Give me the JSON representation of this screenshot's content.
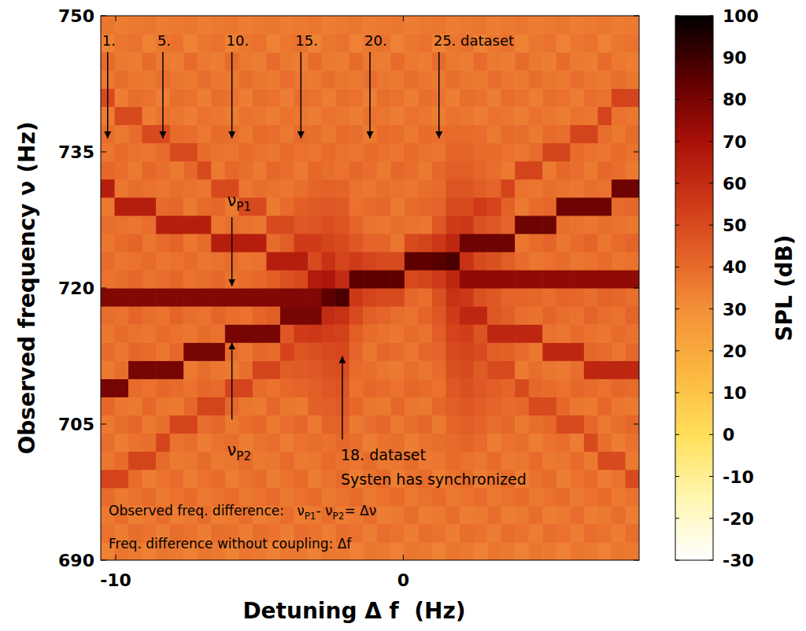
{
  "chart_data": {
    "type": "heatmap",
    "xlabel": "Detuning Δ f  (Hz)",
    "ylabel": "Observed frequency ν (Hz)",
    "xlim": [
      -10.52,
      8.2
    ],
    "ylim": [
      690,
      750
    ],
    "xticks": [
      -10,
      0
    ],
    "yticks": [
      690,
      705,
      720,
      735,
      750
    ],
    "grid": false,
    "x": [
      -10.28,
      -9.8,
      -9.32,
      -8.84,
      -8.36,
      -7.88,
      -7.4,
      -6.92,
      -6.44,
      -5.96,
      -5.48,
      -5.0,
      -4.52,
      -4.04,
      -3.56,
      -3.08,
      -2.6,
      -2.12,
      -1.64,
      -1.16,
      -0.68,
      -0.2,
      0.28,
      0.76,
      1.24,
      1.72,
      2.2,
      2.68,
      3.16,
      3.64,
      4.12,
      4.6,
      5.08,
      5.56,
      6.04,
      6.52,
      7.0,
      7.48,
      7.96
    ],
    "y": [
      691,
      693,
      695,
      697,
      699,
      701,
      703,
      705,
      707,
      709,
      711,
      713,
      715,
      717,
      719,
      721,
      723,
      725,
      727,
      729,
      731,
      733,
      735,
      737,
      739,
      741,
      743,
      745,
      747,
      749
    ],
    "cells": [
      [
        34,
        38,
        36,
        40,
        52,
        37,
        39,
        36,
        41,
        80,
        36,
        40,
        37,
        39,
        78,
        38,
        40,
        37,
        39,
        36,
        65,
        41,
        37,
        39,
        35,
        50,
        36,
        40,
        34,
        37
      ],
      [
        37,
        35,
        39,
        36,
        52,
        40,
        35,
        39,
        37,
        80,
        39,
        37,
        40,
        38,
        78,
        39,
        37,
        40,
        38,
        65,
        37,
        39,
        40,
        36,
        50,
        35,
        39,
        36,
        37,
        35
      ],
      [
        36,
        39,
        35,
        38,
        40,
        52,
        38,
        41,
        36,
        40,
        80,
        41,
        38,
        42,
        78,
        41,
        38,
        42,
        37,
        65,
        39,
        36,
        38,
        40,
        50,
        39,
        37,
        35,
        38,
        36
      ],
      [
        34,
        38,
        36,
        40,
        35,
        52,
        39,
        36,
        41,
        38,
        80,
        40,
        37,
        39,
        78,
        38,
        40,
        37,
        39,
        65,
        38,
        41,
        37,
        50,
        35,
        38,
        36,
        40,
        34,
        37
      ],
      [
        37,
        35,
        39,
        36,
        38,
        40,
        52,
        39,
        37,
        41,
        80,
        37,
        40,
        38,
        78,
        39,
        37,
        40,
        65,
        40,
        37,
        39,
        40,
        50,
        38,
        35,
        39,
        36,
        37,
        35
      ],
      [
        36,
        39,
        35,
        38,
        40,
        36,
        38,
        52,
        36,
        40,
        80,
        41,
        38,
        42,
        78,
        41,
        38,
        42,
        65,
        41,
        39,
        36,
        50,
        40,
        37,
        39,
        37,
        35,
        38,
        36
      ],
      [
        34,
        38,
        36,
        40,
        35,
        37,
        39,
        52,
        41,
        38,
        36,
        80,
        37,
        39,
        78,
        38,
        40,
        37,
        65,
        36,
        38,
        41,
        50,
        39,
        35,
        38,
        36,
        40,
        34,
        37
      ],
      [
        37,
        35,
        39,
        36,
        38,
        40,
        35,
        39,
        52,
        41,
        39,
        80,
        40,
        38,
        78,
        39,
        37,
        40,
        65,
        40,
        37,
        50,
        40,
        36,
        38,
        35,
        39,
        36,
        37,
        35
      ],
      [
        36,
        39,
        35,
        38,
        40,
        36,
        38,
        41,
        52,
        40,
        37,
        80,
        38,
        42,
        78,
        41,
        38,
        65,
        37,
        41,
        50,
        36,
        38,
        40,
        37,
        39,
        37,
        35,
        38,
        36
      ],
      [
        34,
        38,
        36,
        40,
        35,
        37,
        39,
        36,
        41,
        52,
        36,
        40,
        80,
        39,
        78,
        38,
        40,
        65,
        39,
        36,
        50,
        41,
        37,
        39,
        35,
        38,
        36,
        40,
        34,
        37
      ],
      [
        37,
        35,
        39,
        36,
        38,
        40,
        35,
        39,
        37,
        52,
        39,
        37,
        80,
        38,
        78,
        39,
        37,
        65,
        38,
        50,
        37,
        39,
        40,
        36,
        38,
        35,
        39,
        36,
        37,
        35
      ],
      [
        36,
        39,
        35,
        38,
        40,
        36,
        38,
        41,
        36,
        40,
        52,
        41,
        80,
        42,
        78,
        41,
        38,
        65,
        37,
        50,
        39,
        36,
        38,
        40,
        37,
        39,
        37,
        35,
        38,
        36
      ],
      [
        34,
        38,
        36,
        40,
        35,
        37,
        39,
        36,
        41,
        38,
        52,
        40,
        80,
        44,
        78,
        44,
        65,
        40,
        50,
        36,
        38,
        41,
        37,
        39,
        35,
        38,
        36,
        40,
        34,
        37
      ],
      [
        37,
        35,
        39,
        36,
        38,
        40,
        35,
        39,
        37,
        41,
        44,
        52,
        46,
        80,
        78,
        48,
        65,
        44,
        50,
        40,
        37,
        39,
        40,
        36,
        38,
        35,
        39,
        36,
        37,
        35
      ],
      [
        36,
        39,
        35,
        38,
        40,
        36,
        38,
        41,
        36,
        42,
        45,
        47,
        55,
        80,
        78,
        50,
        65,
        55,
        46,
        44,
        39,
        36,
        38,
        40,
        37,
        39,
        37,
        35,
        38,
        36
      ],
      [
        34,
        38,
        36,
        40,
        35,
        37,
        39,
        36,
        43,
        44,
        46,
        48,
        56,
        80,
        78,
        66,
        50,
        55,
        47,
        45,
        42,
        41,
        37,
        39,
        35,
        38,
        36,
        40,
        34,
        37
      ],
      [
        37,
        35,
        39,
        36,
        38,
        40,
        38,
        42,
        44,
        46,
        48,
        50,
        54,
        60,
        85,
        68,
        58,
        52,
        49,
        46,
        43,
        39,
        40,
        36,
        38,
        35,
        39,
        36,
        37,
        35
      ],
      [
        36,
        39,
        35,
        38,
        40,
        38,
        41,
        43,
        45,
        47,
        49,
        51,
        53,
        58,
        88,
        60,
        52,
        50,
        47,
        45,
        42,
        38,
        38,
        40,
        37,
        39,
        37,
        35,
        38,
        36
      ],
      [
        34,
        38,
        36,
        40,
        35,
        37,
        39,
        36,
        41,
        38,
        40,
        42,
        44,
        50,
        56,
        85,
        55,
        46,
        42,
        38,
        38,
        41,
        37,
        39,
        35,
        38,
        36,
        40,
        34,
        37
      ],
      [
        37,
        35,
        39,
        36,
        38,
        40,
        35,
        39,
        37,
        41,
        39,
        37,
        40,
        44,
        52,
        85,
        52,
        42,
        38,
        40,
        37,
        39,
        40,
        36,
        38,
        35,
        39,
        36,
        37,
        35
      ],
      [
        36,
        39,
        35,
        38,
        40,
        36,
        38,
        41,
        36,
        40,
        37,
        41,
        38,
        42,
        50,
        85,
        50,
        42,
        37,
        41,
        39,
        36,
        38,
        40,
        37,
        39,
        37,
        35,
        38,
        36
      ],
      [
        34,
        38,
        36,
        40,
        35,
        37,
        39,
        36,
        41,
        38,
        36,
        40,
        37,
        39,
        50,
        85,
        50,
        37,
        39,
        36,
        38,
        41,
        37,
        39,
        35,
        38,
        36,
        40,
        34,
        37
      ],
      [
        37,
        35,
        39,
        36,
        38,
        40,
        35,
        39,
        37,
        41,
        39,
        37,
        40,
        38,
        41,
        50,
        85,
        50,
        38,
        40,
        37,
        39,
        40,
        36,
        38,
        35,
        39,
        36,
        37,
        35
      ],
      [
        36,
        39,
        35,
        38,
        40,
        36,
        38,
        41,
        36,
        40,
        37,
        41,
        38,
        42,
        39,
        52,
        85,
        52,
        37,
        41,
        39,
        36,
        38,
        40,
        37,
        39,
        37,
        35,
        38,
        36
      ],
      [
        34,
        38,
        36,
        40,
        35,
        37,
        39,
        36,
        41,
        38,
        40,
        42,
        44,
        46,
        48,
        55,
        86,
        56,
        46,
        42,
        40,
        41,
        37,
        39,
        35,
        38,
        36,
        40,
        34,
        37
      ],
      [
        37,
        35,
        39,
        36,
        38,
        40,
        40,
        42,
        44,
        46,
        48,
        50,
        52,
        55,
        58,
        62,
        88,
        62,
        55,
        50,
        47,
        44,
        42,
        40,
        38,
        35,
        39,
        36,
        37,
        35
      ],
      [
        36,
        39,
        35,
        38,
        40,
        38,
        42,
        44,
        46,
        48,
        50,
        52,
        54,
        62,
        56,
        75,
        58,
        82,
        56,
        50,
        47,
        44,
        42,
        40,
        37,
        39,
        37,
        35,
        38,
        36
      ],
      [
        34,
        38,
        36,
        40,
        35,
        37,
        40,
        42,
        44,
        46,
        45,
        50,
        47,
        62,
        48,
        75,
        50,
        82,
        48,
        55,
        44,
        41,
        40,
        39,
        35,
        38,
        36,
        40,
        34,
        37
      ],
      [
        37,
        35,
        39,
        36,
        38,
        40,
        35,
        39,
        42,
        44,
        50,
        44,
        62,
        46,
        46,
        75,
        48,
        82,
        46,
        52,
        42,
        39,
        40,
        36,
        38,
        35,
        39,
        36,
        37,
        35
      ],
      [
        36,
        39,
        35,
        38,
        40,
        36,
        38,
        41,
        40,
        42,
        50,
        43,
        62,
        44,
        42,
        75,
        44,
        82,
        42,
        43,
        52,
        36,
        38,
        40,
        37,
        39,
        37,
        35,
        38,
        36
      ],
      [
        34,
        38,
        36,
        40,
        35,
        37,
        39,
        36,
        41,
        50,
        36,
        40,
        62,
        39,
        42,
        75,
        40,
        37,
        82,
        36,
        38,
        52,
        37,
        39,
        35,
        38,
        36,
        40,
        34,
        37
      ],
      [
        37,
        35,
        39,
        36,
        38,
        40,
        35,
        39,
        50,
        41,
        39,
        37,
        62,
        38,
        41,
        75,
        37,
        40,
        82,
        40,
        37,
        52,
        40,
        36,
        38,
        35,
        39,
        36,
        37,
        35
      ],
      [
        36,
        39,
        35,
        38,
        40,
        36,
        38,
        41,
        50,
        40,
        37,
        62,
        38,
        42,
        39,
        75,
        38,
        42,
        82,
        41,
        39,
        36,
        52,
        40,
        37,
        39,
        37,
        35,
        38,
        36
      ],
      [
        34,
        38,
        36,
        40,
        35,
        37,
        39,
        50,
        41,
        38,
        36,
        62,
        37,
        39,
        42,
        75,
        40,
        37,
        39,
        82,
        38,
        41,
        52,
        39,
        35,
        38,
        36,
        40,
        34,
        37
      ],
      [
        37,
        35,
        39,
        36,
        38,
        40,
        35,
        50,
        37,
        41,
        39,
        62,
        40,
        38,
        41,
        75,
        37,
        40,
        38,
        82,
        37,
        39,
        40,
        52,
        38,
        35,
        39,
        36,
        37,
        35
      ],
      [
        36,
        39,
        35,
        38,
        40,
        36,
        50,
        41,
        36,
        40,
        62,
        41,
        38,
        42,
        39,
        75,
        38,
        42,
        37,
        82,
        39,
        36,
        38,
        52,
        37,
        39,
        37,
        35,
        38,
        36
      ],
      [
        34,
        38,
        36,
        40,
        35,
        50,
        39,
        36,
        41,
        38,
        62,
        40,
        37,
        39,
        42,
        75,
        40,
        37,
        39,
        82,
        38,
        41,
        37,
        39,
        52,
        38,
        36,
        40,
        34,
        37
      ],
      [
        37,
        35,
        39,
        36,
        38,
        50,
        35,
        39,
        37,
        41,
        62,
        37,
        40,
        38,
        41,
        75,
        37,
        40,
        38,
        40,
        82,
        39,
        40,
        36,
        38,
        52,
        39,
        36,
        37,
        35
      ],
      [
        36,
        39,
        35,
        38,
        50,
        36,
        38,
        41,
        36,
        40,
        62,
        41,
        38,
        42,
        39,
        75,
        38,
        42,
        37,
        41,
        82,
        36,
        38,
        40,
        37,
        52,
        37,
        35,
        38,
        36
      ]
    ],
    "colorbar": {
      "label": "SPL (dB)",
      "range": [
        -30,
        100
      ],
      "ticks": [
        -30,
        -20,
        -10,
        0,
        10,
        20,
        30,
        40,
        50,
        60,
        70,
        80,
        90,
        100
      ]
    },
    "dataset_markers": [
      {
        "label": "1.",
        "dataset": 1
      },
      {
        "label": "5.",
        "dataset": 5
      },
      {
        "label": "10.",
        "dataset": 10
      },
      {
        "label": "15.",
        "dataset": 15
      },
      {
        "label": "20.",
        "dataset": 20
      },
      {
        "label": "25. dataset",
        "dataset": 25
      }
    ],
    "annotations": [
      {
        "text": "νP1",
        "dataset": 10,
        "y": 729,
        "arrow": [
          727.8,
          720.2
        ]
      },
      {
        "text": "νP2",
        "dataset": 10,
        "y": 701.5,
        "arrow": [
          705.5,
          714
        ]
      },
      {
        "lines": [
          "18. dataset",
          "Systen has synchronized"
        ],
        "dataset": 18,
        "y": 701,
        "arrow": [
          703.3,
          712.5
        ]
      }
    ],
    "notes": [
      "Observed freq. difference:   νP1- νP2= Δν",
      "Freq. difference without coupling: Δf"
    ]
  }
}
